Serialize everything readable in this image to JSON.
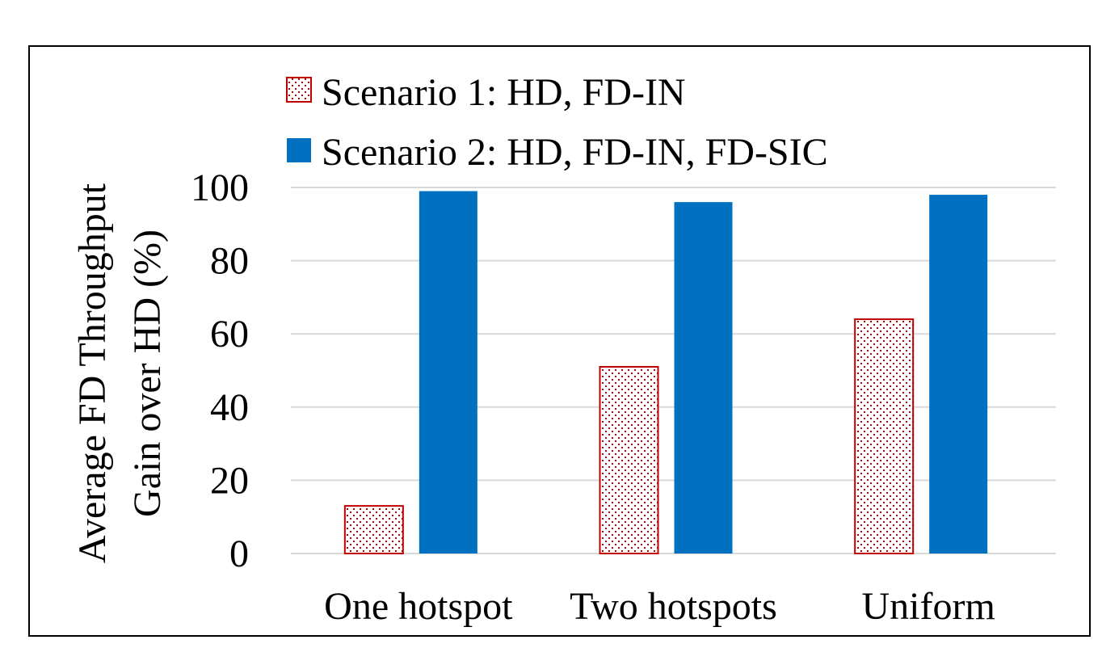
{
  "chart_data": {
    "type": "bar",
    "title": "",
    "xlabel": "",
    "ylabel": "Average FD Throughput Gain over HD (%)",
    "ylabel_lines": [
      "Average FD Throughput",
      "Gain over HD (%)"
    ],
    "categories": [
      "One hotspot",
      "Two hotspots",
      "Uniform"
    ],
    "series": [
      {
        "name": "Scenario 1: HD, FD-IN",
        "values": [
          13,
          51,
          64
        ],
        "color": "#C00000",
        "fill": "dotted"
      },
      {
        "name": "Scenario 2: HD, FD-IN, FD-SIC",
        "values": [
          99,
          96,
          98
        ],
        "color": "#0070C0",
        "fill": "solid"
      }
    ],
    "ylim": [
      0,
      100
    ],
    "yticks": [
      0,
      20,
      40,
      60,
      80,
      100
    ],
    "grid": true,
    "legend": "top-left"
  }
}
